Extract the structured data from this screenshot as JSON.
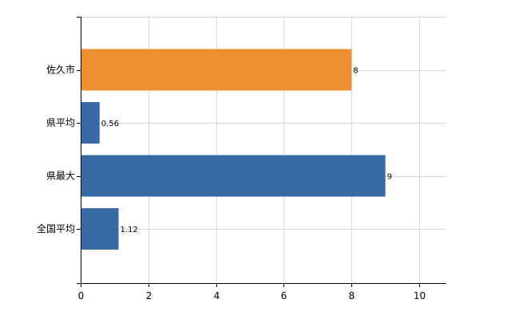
{
  "chart_data": {
    "type": "bar",
    "orientation": "horizontal",
    "title": "",
    "xlabel": "",
    "ylabel": "",
    "categories": [
      "佐久市",
      "県平均",
      "県最大",
      "全国平均"
    ],
    "values": [
      8,
      0.56,
      9,
      1.12
    ],
    "value_labels": [
      "8",
      "0.56",
      "9",
      "1.12"
    ],
    "colors": [
      "#ee8f30",
      "#3a6aa5",
      "#3a6aa5",
      "#3a6aa5"
    ],
    "xlim": [
      0,
      10.8
    ],
    "xticks": [
      0,
      2,
      4,
      6,
      8,
      10
    ],
    "grid": true,
    "legend": "none"
  }
}
